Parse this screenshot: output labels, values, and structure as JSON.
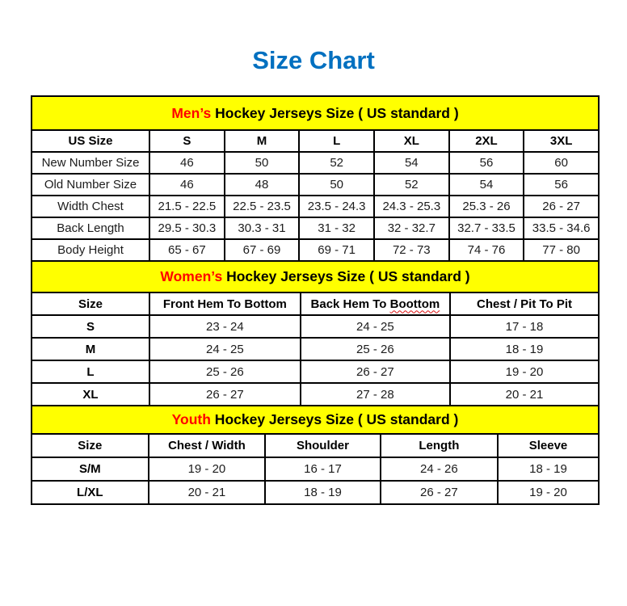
{
  "page_title": "Size Chart",
  "colors": {
    "title_blue": "#0070C0",
    "highlight_red": "#FF0000",
    "banner_yellow": "#FFFF00",
    "grid_black": "#000000",
    "spellcheck_red": "#DD1111"
  },
  "tables": [
    {
      "id": "mens",
      "banner": {
        "highlight": "Men’s",
        "rest": " Hockey Jerseys Size ( US standard )"
      },
      "columns": [
        "US Size",
        "S",
        "M",
        "L",
        "XL",
        "2XL",
        "3XL"
      ],
      "rows": [
        {
          "label": "New Number Size",
          "values": [
            "46",
            "50",
            "52",
            "54",
            "56",
            "60"
          ]
        },
        {
          "label": "Old Number Size",
          "values": [
            "46",
            "48",
            "50",
            "52",
            "54",
            "56"
          ]
        },
        {
          "label": "Width Chest",
          "values": [
            "21.5 - 22.5",
            "22.5 - 23.5",
            "23.5 - 24.3",
            "24.3 - 25.3",
            "25.3 - 26",
            "26 - 27"
          ]
        },
        {
          "label": "Back Length",
          "values": [
            "29.5 - 30.3",
            "30.3 - 31",
            "31 - 32",
            "32 - 32.7",
            "32.7 - 33.5",
            "33.5 - 34.6"
          ]
        },
        {
          "label": "Body Height",
          "values": [
            "65 - 67",
            "67 - 69",
            "69 - 71",
            "72 - 73",
            "74 - 76",
            "77 - 80"
          ]
        }
      ]
    },
    {
      "id": "womens",
      "banner": {
        "highlight": "Women’s",
        "rest": " Hockey Jerseys Size ( US standard )"
      },
      "columns": [
        "Size",
        "Front Hem To Bottom",
        "Back Hem To Boottom",
        "Chest / Pit To Pit"
      ],
      "spellcheck_underline": {
        "column_index": 2,
        "underlined_word": "Boottom"
      },
      "rows": [
        {
          "label": "S",
          "values": [
            "23 - 24",
            "24 - 25",
            "17 - 18"
          ]
        },
        {
          "label": "M",
          "values": [
            "24 - 25",
            "25 - 26",
            "18 - 19"
          ]
        },
        {
          "label": "L",
          "values": [
            "25 - 26",
            "26 - 27",
            "19 - 20"
          ]
        },
        {
          "label": "XL",
          "values": [
            "26 - 27",
            "27 - 28",
            "20 - 21"
          ]
        }
      ]
    },
    {
      "id": "youth",
      "banner": {
        "highlight": "Youth",
        "rest": " Hockey Jerseys Size ( US standard )"
      },
      "columns": [
        "Size",
        "Chest / Width",
        "Shoulder",
        "Length",
        "Sleeve"
      ],
      "rows": [
        {
          "label": "S/M",
          "values": [
            "19 - 20",
            "16 - 17",
            "24 - 26",
            "18 - 19"
          ]
        },
        {
          "label": "L/XL",
          "values": [
            "20 - 21",
            "18 - 19",
            "26 - 27",
            "19 - 20"
          ]
        }
      ]
    }
  ]
}
